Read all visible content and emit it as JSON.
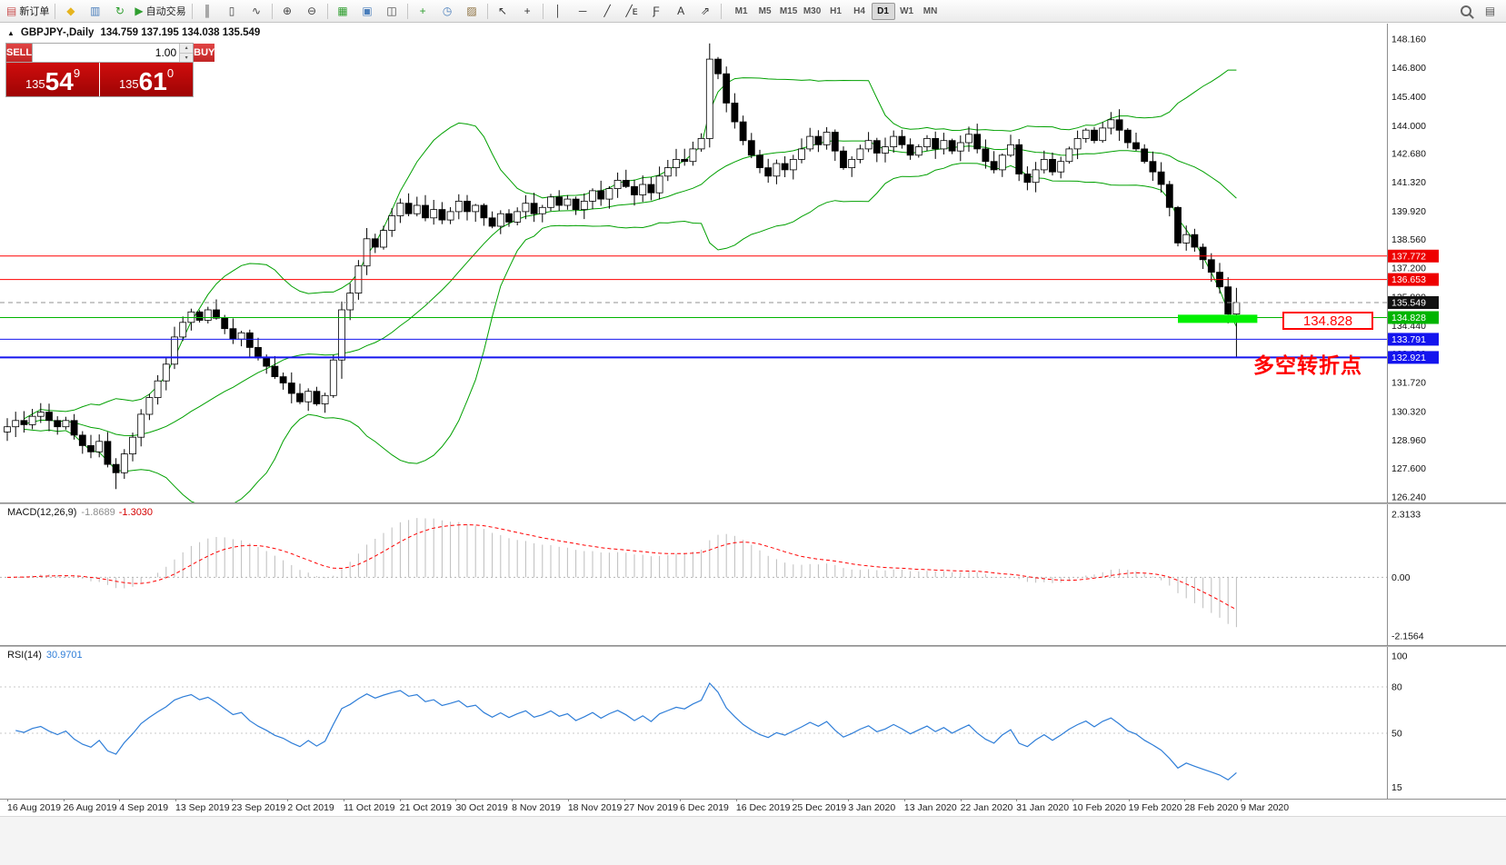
{
  "toolbar": {
    "groups": [
      [
        {
          "name": "new-order-button",
          "glyph": "▤",
          "color": "#c94f4f",
          "label": "新订单"
        }
      ],
      [
        {
          "name": "metaeditor-icon",
          "glyph": "◆",
          "color": "#e6b41e"
        },
        {
          "name": "data-window-icon",
          "glyph": "▥",
          "color": "#4a7ebb"
        },
        {
          "name": "refresh-icon",
          "glyph": "↻",
          "color": "#2f9e2f"
        },
        {
          "name": "autotrading-button",
          "glyph": "▶",
          "color": "#2f9e2f",
          "label": "自动交易"
        }
      ],
      [
        {
          "name": "bar-chart-icon",
          "glyph": "║",
          "color": "#444444"
        },
        {
          "name": "candlestick-chart-icon",
          "glyph": "▯",
          "color": "#444444"
        },
        {
          "name": "line-chart-icon",
          "glyph": "∿",
          "color": "#444444"
        }
      ],
      [
        {
          "name": "zoom-in-icon",
          "glyph": "⊕",
          "color": "#444444"
        },
        {
          "name": "zoom-out-icon",
          "glyph": "⊖",
          "color": "#444444"
        }
      ],
      [
        {
          "name": "tile-windows-icon",
          "glyph": "▦",
          "color": "#2f9e2f"
        },
        {
          "name": "indicators-list-icon",
          "glyph": "▣",
          "color": "#4a7ebb"
        },
        {
          "name": "chart-list-icon",
          "glyph": "◫",
          "color": "#444444"
        }
      ],
      [
        {
          "name": "indicators-add-icon",
          "glyph": "+",
          "color": "#2f9e2f"
        },
        {
          "name": "periods-icon",
          "glyph": "◷",
          "color": "#4a7ebb"
        },
        {
          "name": "templates-icon",
          "glyph": "▨",
          "color": "#8a6d3b"
        }
      ],
      [
        {
          "name": "cursor-icon",
          "glyph": "↖",
          "color": "#333333"
        },
        {
          "name": "crosshair-icon",
          "glyph": "+",
          "color": "#333333"
        }
      ],
      [
        {
          "name": "vertical-line-icon",
          "glyph": "│",
          "color": "#333333"
        },
        {
          "name": "horizontal-line-icon",
          "glyph": "─",
          "color": "#333333"
        },
        {
          "name": "trendline-icon",
          "glyph": "╱",
          "color": "#333333"
        },
        {
          "name": "equidistant-channel-icon",
          "glyph": "╱ᴇ",
          "color": "#333333"
        },
        {
          "name": "fibonacci-icon",
          "glyph": "Ƒ",
          "color": "#333333"
        },
        {
          "name": "text-icon",
          "glyph": "A",
          "color": "#333333"
        },
        {
          "name": "arrow-tools-icon",
          "glyph": "⇗",
          "color": "#333333"
        }
      ]
    ],
    "timeframes": [
      "M1",
      "M5",
      "M15",
      "M30",
      "H1",
      "H4",
      "D1",
      "W1",
      "MN"
    ],
    "active_timeframe": "D1",
    "right_items": [
      {
        "name": "search-icon",
        "css_icon": "mag"
      },
      {
        "name": "print-icon",
        "glyph": "▤",
        "color": "#555555"
      }
    ]
  },
  "chart": {
    "title_arrow": "▲",
    "symbol_period": "GBPJPY-,Daily",
    "ohlc": "134.759 137.195 134.038 135.549"
  },
  "trade_panel": {
    "sell_label": "SELL",
    "buy_label": "BUY",
    "volume": "1.00",
    "spin_up": "▴",
    "spin_down": "▾",
    "sell_price": {
      "small": "135",
      "big": "54",
      "sup": "9"
    },
    "buy_price": {
      "small": "135",
      "big": "61",
      "sup": "0"
    }
  },
  "levels": [
    {
      "name": "resistance-line-1",
      "price": 137.772,
      "label": "137.772",
      "box_color": "#EE0000",
      "line_color": "#FF0000",
      "style": "solid",
      "width": 1
    },
    {
      "name": "resistance-line-2",
      "price": 136.653,
      "label": "136.653",
      "box_color": "#EE0000",
      "line_color": "#FF0000",
      "style": "solid",
      "width": 1
    },
    {
      "name": "bid-price-line",
      "price": 135.549,
      "label": "135.549",
      "box_color": "#111111",
      "line_color": "#909090",
      "style": "dashed",
      "width": 1
    },
    {
      "name": "support-line-green",
      "price": 134.828,
      "label": "134.828",
      "box_color": "#00B400",
      "line_color": "#00B400",
      "style": "solid",
      "width": 1
    },
    {
      "name": "support-line-blue-1",
      "price": 133.791,
      "label": "133.791",
      "box_color": "#1414EE",
      "line_color": "#1414EE",
      "style": "solid",
      "width": 1
    },
    {
      "name": "support-line-blue-2",
      "price": 132.921,
      "label": "132.921",
      "box_color": "#1414EE",
      "line_color": "#1414EE",
      "style": "solid",
      "width": 2
    }
  ],
  "highlight": {
    "start_bar": 140,
    "end_bar": 149.5,
    "price": 134.77,
    "color": "#00F000",
    "width": 9
  },
  "annotations": {
    "callout_text": "134.828",
    "turning_point_text": "多空转折点"
  },
  "chart_data": {
    "type": "candlestick",
    "symbol": "GBPJPY-",
    "timeframe": "Daily",
    "title": "GBPJPY-,Daily 134.759 137.195 134.038 135.549",
    "y_ticks": [
      "148.160",
      "146.800",
      "145.400",
      "144.000",
      "142.680",
      "141.320",
      "139.920",
      "138.560",
      "137.200",
      "135.800",
      "134.440",
      "133.080",
      "131.720",
      "130.320",
      "128.960",
      "127.600",
      "126.240"
    ],
    "y_range": [
      126.24,
      148.16
    ],
    "x_labels": [
      "16 Aug 2019",
      "26 Aug 2019",
      "4 Sep 2019",
      "13 Sep 2019",
      "23 Sep 2019",
      "2 Oct 2019",
      "11 Oct 2019",
      "21 Oct 2019",
      "30 Oct 2019",
      "8 Nov 2019",
      "18 Nov 2019",
      "27 Nov 2019",
      "6 Dec 2019",
      "16 Dec 2019",
      "25 Dec 2019",
      "3 Jan 2020",
      "13 Jan 2020",
      "22 Jan 2020",
      "31 Jan 2020",
      "10 Feb 2020",
      "19 Feb 2020",
      "28 Feb 2020",
      "9 Mar 2020"
    ],
    "closes": [
      129.6,
      129.9,
      129.7,
      130.1,
      130.3,
      129.9,
      129.6,
      129.9,
      129.2,
      128.7,
      128.4,
      128.9,
      127.8,
      127.4,
      128.3,
      129.1,
      130.2,
      131.0,
      131.8,
      132.6,
      133.9,
      134.6,
      135.1,
      134.7,
      135.2,
      134.8,
      134.3,
      133.8,
      134.1,
      133.4,
      132.9,
      132.5,
      132.0,
      131.7,
      131.2,
      130.8,
      131.3,
      130.7,
      131.1,
      132.8,
      135.2,
      136.0,
      137.3,
      138.6,
      138.2,
      139.0,
      139.7,
      140.3,
      139.8,
      140.2,
      139.6,
      140.0,
      139.5,
      139.9,
      140.4,
      139.9,
      140.2,
      139.6,
      139.2,
      139.8,
      139.4,
      139.9,
      140.3,
      139.8,
      140.1,
      140.6,
      140.2,
      140.5,
      140.0,
      140.4,
      140.9,
      140.5,
      141.0,
      141.4,
      141.1,
      140.7,
      141.2,
      140.8,
      141.6,
      142.0,
      142.4,
      142.3,
      142.9,
      143.4,
      147.2,
      146.5,
      145.1,
      144.2,
      143.3,
      142.6,
      142.0,
      141.6,
      142.2,
      141.9,
      142.4,
      142.9,
      143.5,
      143.1,
      143.7,
      142.8,
      142.0,
      142.4,
      142.9,
      143.3,
      142.7,
      143.0,
      143.5,
      143.1,
      142.6,
      143.0,
      143.4,
      142.9,
      143.3,
      142.8,
      143.2,
      143.6,
      142.9,
      142.3,
      141.9,
      142.6,
      143.1,
      141.7,
      141.3,
      141.9,
      142.4,
      141.8,
      142.3,
      142.9,
      143.4,
      143.8,
      143.3,
      143.9,
      144.3,
      143.8,
      143.2,
      142.9,
      142.3,
      141.8,
      141.2,
      140.1,
      138.4,
      138.8,
      138.2,
      137.6,
      137.0,
      136.3,
      135.0,
      135.549
    ],
    "wick_overrides": {
      "13": {
        "low": 126.62
      },
      "40": {
        "low": 131.9
      },
      "84": {
        "high": 147.95
      },
      "85": {
        "high": 147.3
      },
      "146": {
        "low": 134.55
      },
      "147": {
        "low": 132.95,
        "high": 136.25
      }
    },
    "bollinger_period": 20,
    "indicators": {
      "macd": {
        "label": "MACD(12,26,9)",
        "main_value": "-1.8689",
        "signal_value": "-1.3030",
        "axis_labels": [
          "2.3133",
          "0.00",
          "-2.1564"
        ],
        "axis_values": [
          2.3133,
          0,
          -2.1564
        ]
      },
      "rsi": {
        "label": "RSI(14)",
        "value_text": "30.9701",
        "axis_labels": [
          "100",
          "80",
          "50",
          "15"
        ],
        "axis_values": [
          100,
          80,
          50,
          15
        ],
        "levels": [
          80,
          50
        ]
      }
    },
    "style": {
      "candle_up": "#FFFFFF",
      "candle_down": "#000000",
      "candle_outline": "#000000",
      "bollinger": "#00A000",
      "macd_hist": "#BDBDBD",
      "macd_signal": "#FF0000",
      "rsi_line": "#2F7ED8",
      "rsi_level": "#C8C8C8"
    }
  }
}
